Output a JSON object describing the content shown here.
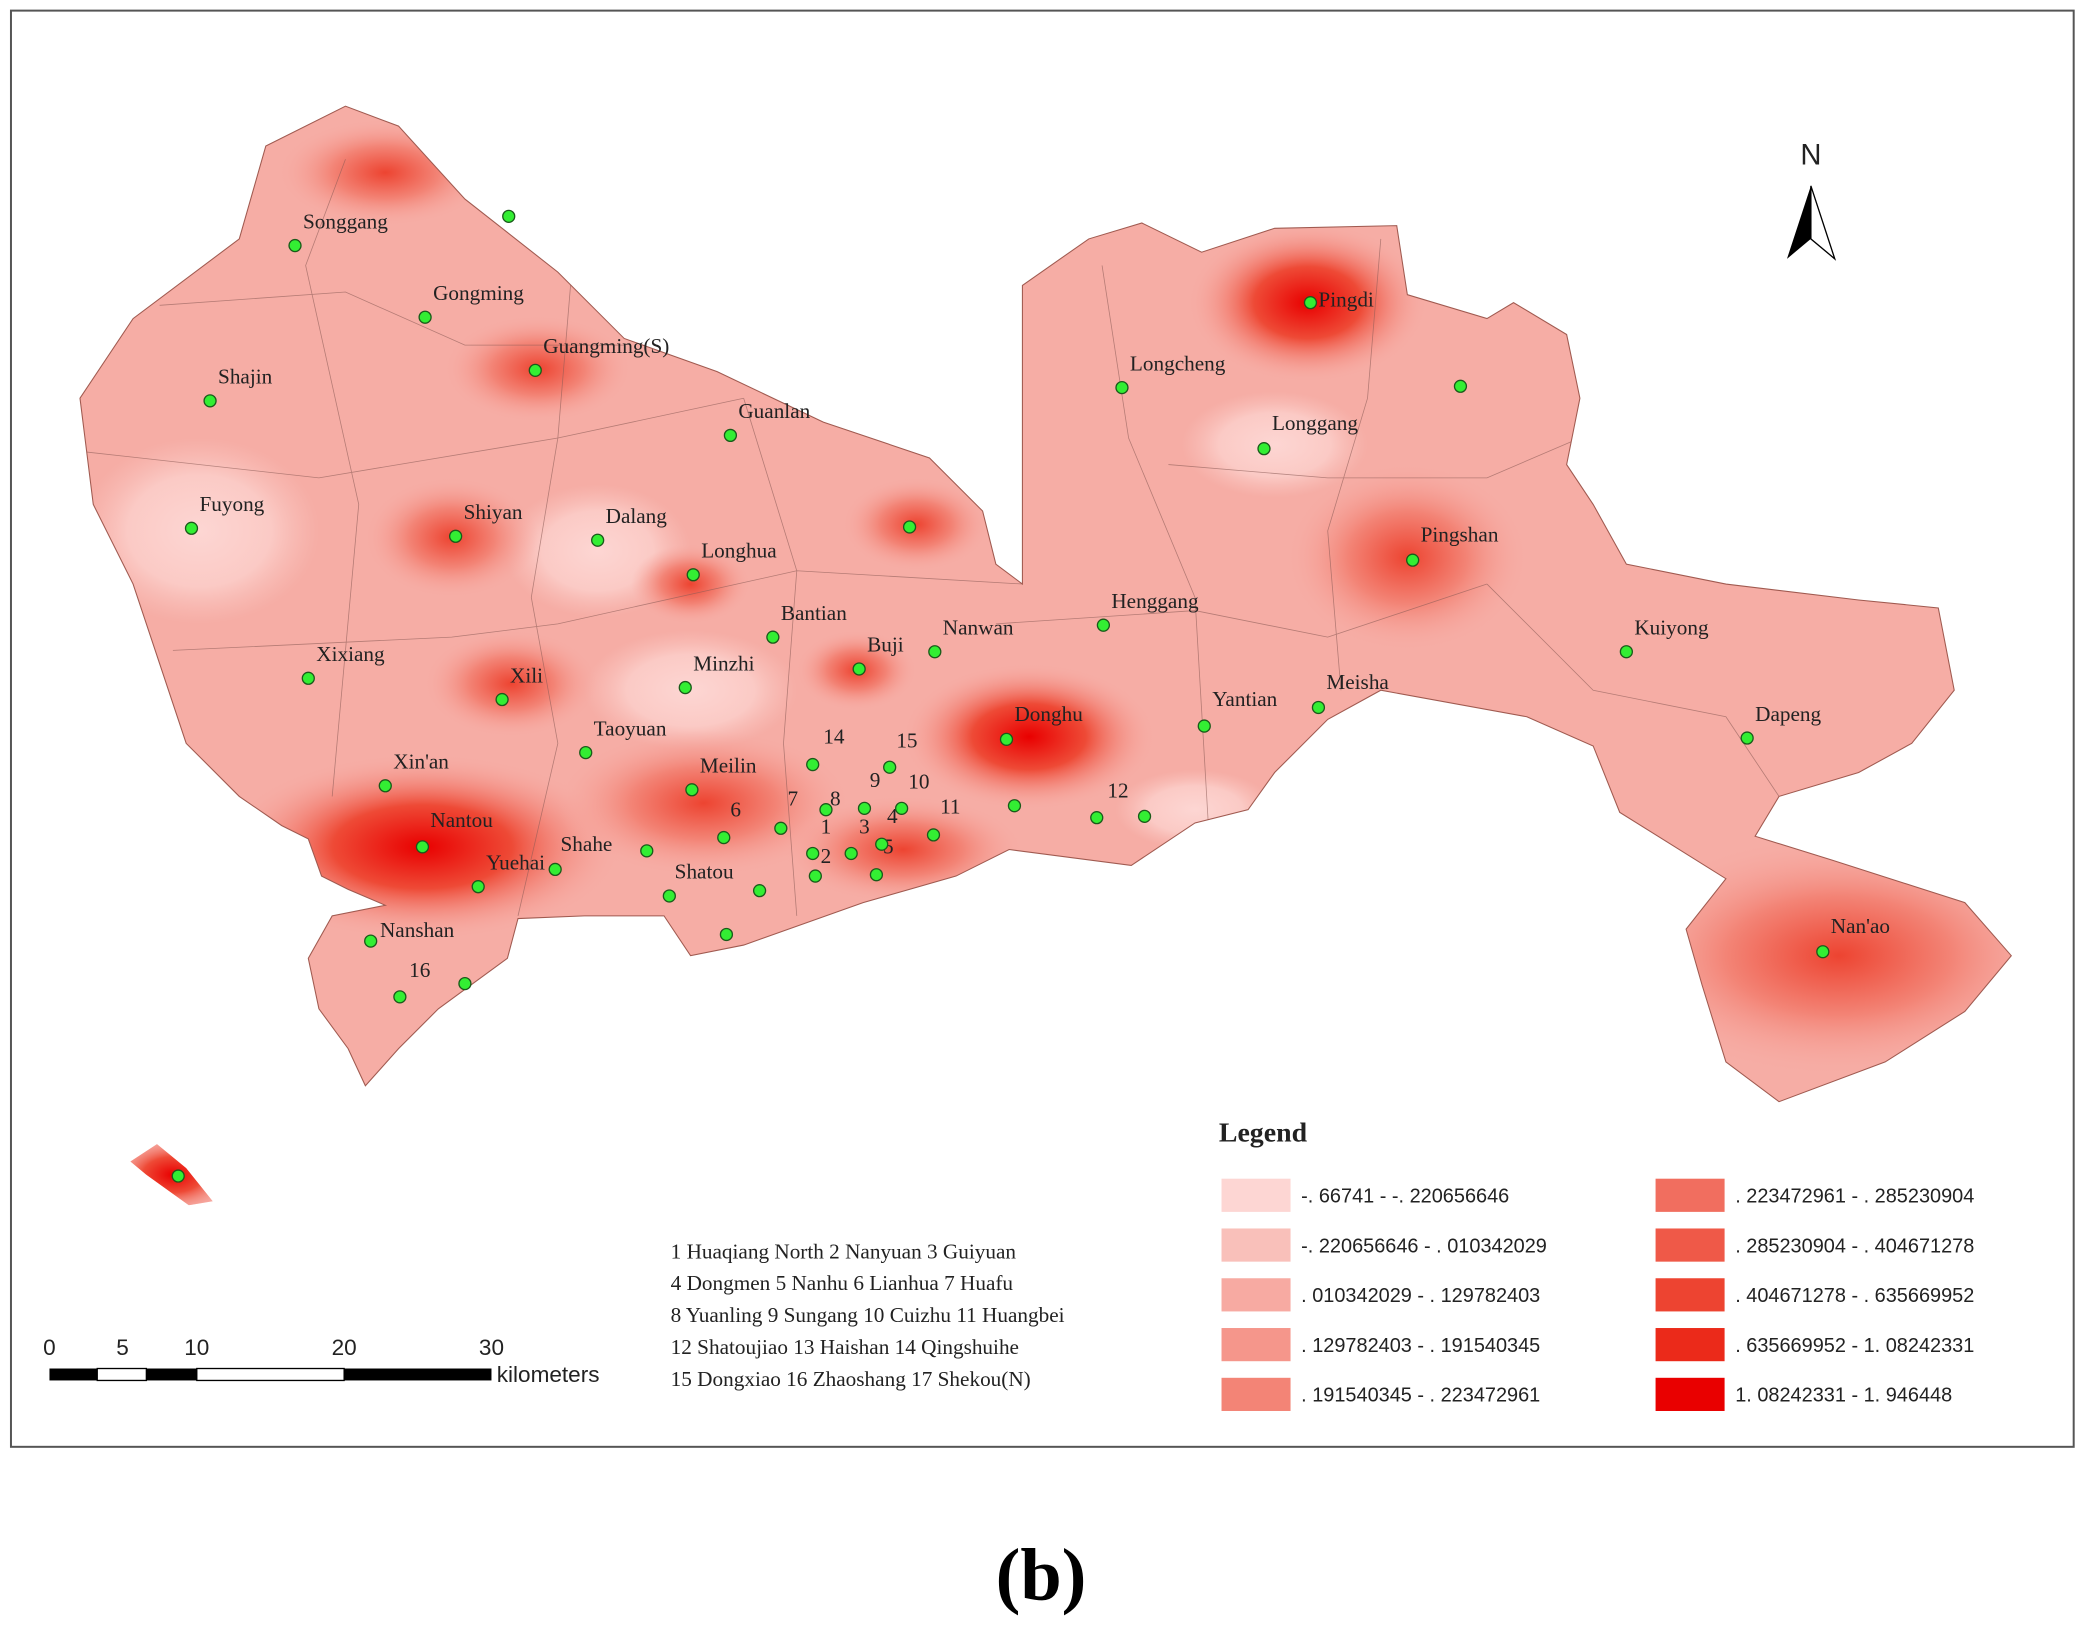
{
  "north_label": "N",
  "caption": "(b)",
  "legend": {
    "title": "Legend",
    "items": [
      {
        "label": "-. 66741 - -. 220656646",
        "color": "#fdd6d3"
      },
      {
        "label": "-. 220656646 - . 010342029",
        "color": "#f9c0ba"
      },
      {
        "label": ". 010342029 - . 129782403",
        "color": "#f7aaa2"
      },
      {
        "label": ". 129782403 - . 191540345",
        "color": "#f5968b"
      },
      {
        "label": ". 191540345 - . 223472961",
        "color": "#f38476"
      },
      {
        "label": ". 223472961 - . 285230904",
        "color": "#f16e5f"
      },
      {
        "label": ". 285230904 - . 404671278",
        "color": "#ef5948"
      },
      {
        "label": ". 404671278 - . 635669952",
        "color": "#ed4431"
      },
      {
        "label": ". 635669952 - 1. 08242331",
        "color": "#eb2a1a"
      },
      {
        "label": "1. 08242331 - 1. 946448",
        "color": "#e90000"
      }
    ]
  },
  "key_lines": [
    "1 Huaqiang North  2 Nanyuan 3 Guiyuan",
    "4 Dongmen  5 Nanhu  6 Lianhua  7 Huafu",
    "8 Yuanling  9 Sungang  10 Cuizhu  11 Huangbei",
    "12 Shatoujiao  13 Haishan  14 Qingshuihe",
    "15 Dongxiao  16 Zhaoshang  17 Shekou(N)"
  ],
  "scale_bar": {
    "ticks": [
      "0",
      "5",
      "10",
      "20",
      "30"
    ],
    "unit": "kilometers"
  },
  "stations": [
    "Songgang",
    "Gongming",
    "Guangming(S)",
    "Shajin",
    "Guanlan",
    "Fuyong",
    "Shiyan",
    "Dalang",
    "Longhua",
    "Bantian",
    "Buji",
    "Nanwan",
    "Minzhi",
    "Xixiang",
    "Xili",
    "Taoyuan",
    "Xin'an",
    "Meilin",
    "Nantou",
    "Yuehai",
    "Shahe",
    "Shatou",
    "Nanshan",
    "Longcheng",
    "Pingdi",
    "Longgang",
    "Pingshan",
    "Henggang",
    "Yantian",
    "Meisha",
    "Kuiyong",
    "Dapeng",
    "Donghu",
    "Nan'ao",
    "14",
    "15",
    "9",
    "10",
    "8",
    "7",
    "6",
    "1",
    "3",
    "4",
    "5",
    "2",
    "11",
    "12",
    "16"
  ]
}
